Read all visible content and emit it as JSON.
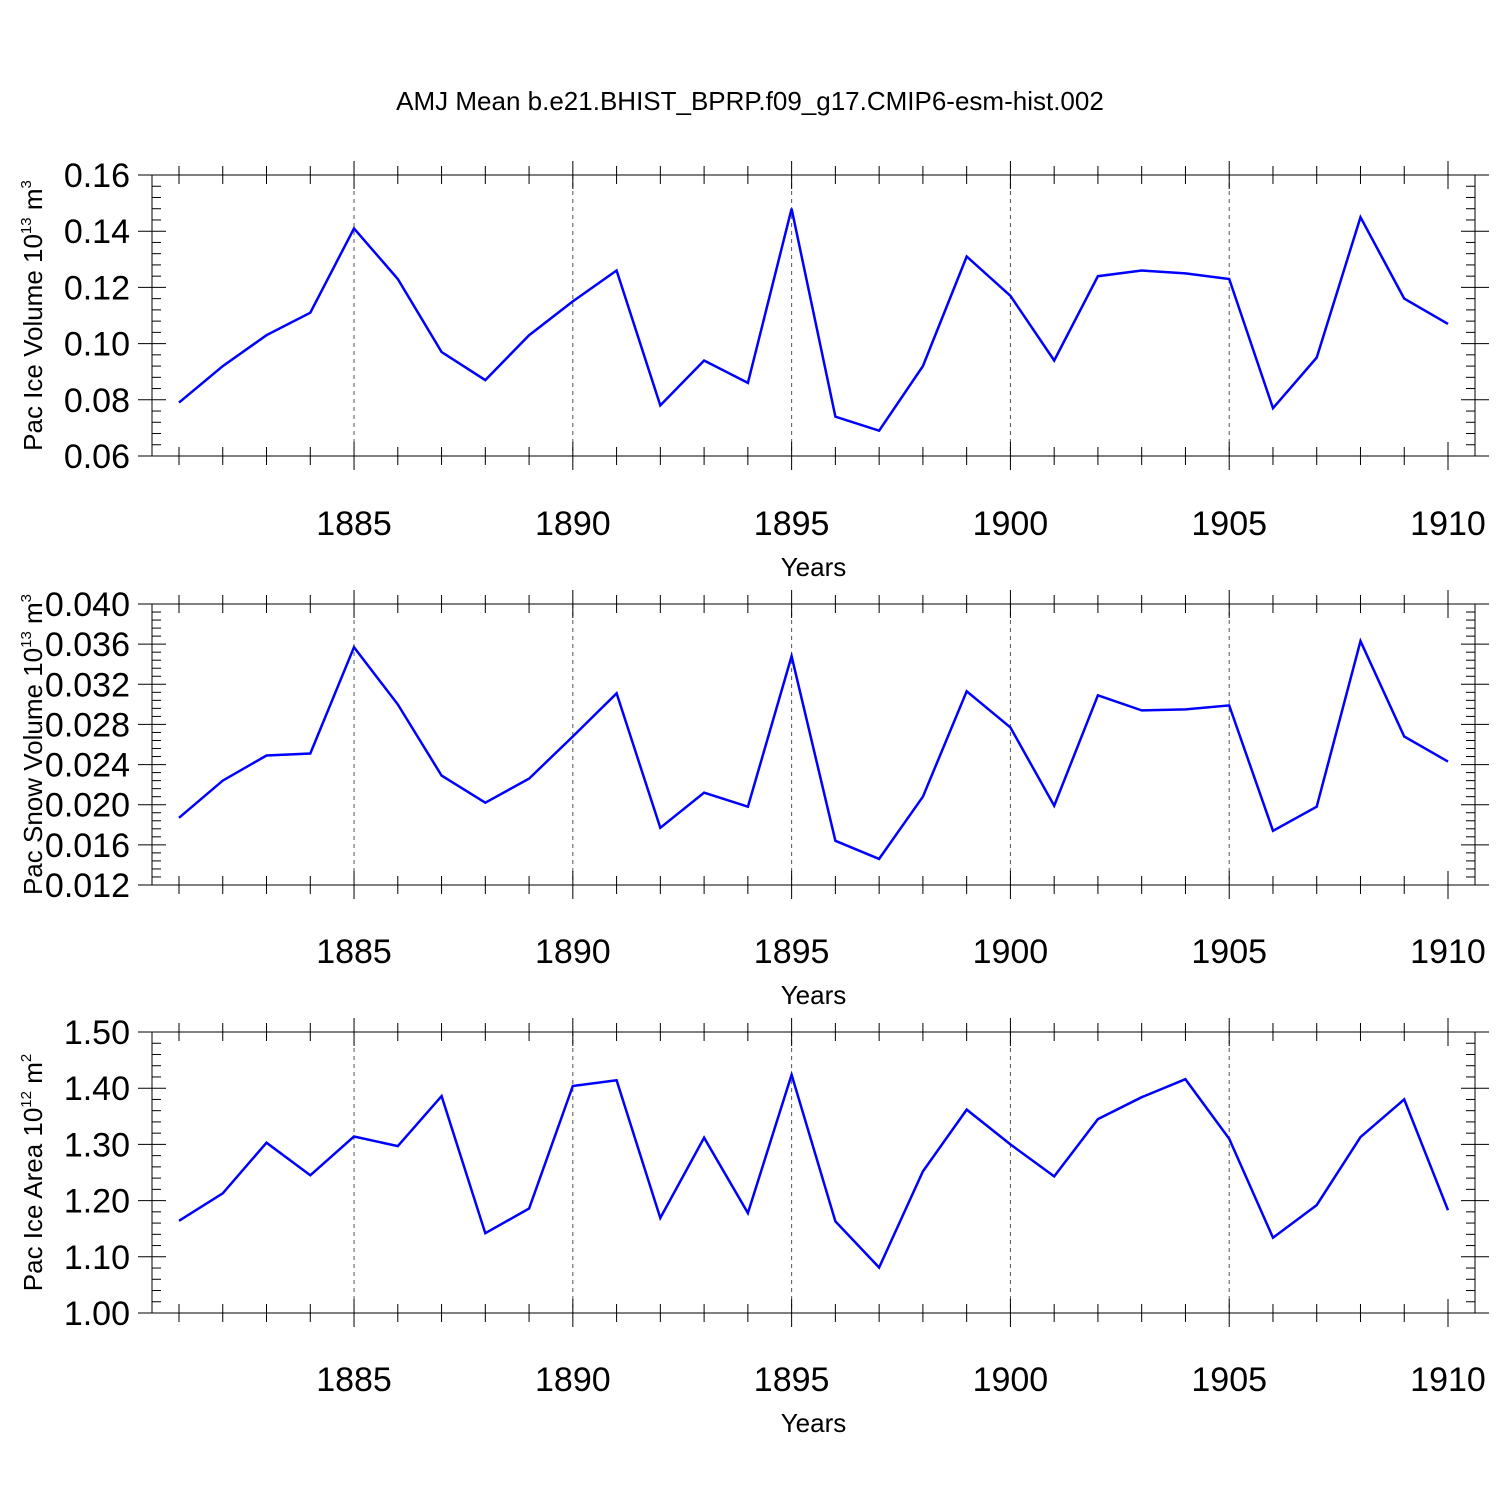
{
  "title": "AMJ Mean b.e21.BHIST_BPRP.f09_g17.CMIP6-esm-hist.002",
  "colors": {
    "line": "#0000ff",
    "axis": "#000000",
    "grid": "#555555"
  },
  "chart_data": [
    {
      "type": "line",
      "xlabel": "Years",
      "ylabel": {
        "main": "Pac Ice Volume 10",
        "exp": "13",
        "unit": " m",
        "unit_exp": "3"
      },
      "xlim": [
        1881,
        1910
      ],
      "ylim": [
        0.06,
        0.16
      ],
      "xticks": [
        1885,
        1890,
        1895,
        1900,
        1905,
        1910
      ],
      "yticks": [
        0.06,
        0.08,
        0.1,
        0.12,
        0.14,
        0.16
      ],
      "ytick_labels": [
        "0.06",
        "0.08",
        "0.10",
        "0.12",
        "0.14",
        "0.16"
      ],
      "vgrid": [
        1885,
        1890,
        1895,
        1900,
        1905
      ],
      "x": [
        1881,
        1882,
        1883,
        1884,
        1885,
        1886,
        1887,
        1888,
        1889,
        1890,
        1891,
        1892,
        1893,
        1894,
        1895,
        1896,
        1897,
        1898,
        1899,
        1900,
        1901,
        1902,
        1903,
        1904,
        1905,
        1906,
        1907,
        1908,
        1909,
        1910
      ],
      "series": [
        {
          "values": [
            0.079,
            0.092,
            0.103,
            0.111,
            0.141,
            0.123,
            0.097,
            0.087,
            0.103,
            0.115,
            0.126,
            0.078,
            0.094,
            0.086,
            0.148,
            0.074,
            0.069,
            0.092,
            0.131,
            0.117,
            0.094,
            0.124,
            0.126,
            0.125,
            0.123,
            0.077,
            0.095,
            0.145,
            0.116,
            0.107
          ]
        }
      ]
    },
    {
      "type": "line",
      "xlabel": "Years",
      "ylabel": {
        "main": "Pac Snow Volume 10",
        "exp": "13",
        "unit": " m",
        "unit_exp": "3"
      },
      "xlim": [
        1881,
        1910
      ],
      "ylim": [
        0.012,
        0.04
      ],
      "xticks": [
        1885,
        1890,
        1895,
        1900,
        1905,
        1910
      ],
      "yticks": [
        0.012,
        0.016,
        0.02,
        0.024,
        0.028,
        0.032,
        0.036,
        0.04
      ],
      "ytick_labels": [
        "0.012",
        "0.016",
        "0.020",
        "0.024",
        "0.028",
        "0.032",
        "0.036",
        "0.040"
      ],
      "vgrid": [
        1885,
        1890,
        1895,
        1900,
        1905
      ],
      "x": [
        1881,
        1882,
        1883,
        1884,
        1885,
        1886,
        1887,
        1888,
        1889,
        1890,
        1891,
        1892,
        1893,
        1894,
        1895,
        1896,
        1897,
        1898,
        1899,
        1900,
        1901,
        1902,
        1903,
        1904,
        1905,
        1906,
        1907,
        1908,
        1909,
        1910
      ],
      "series": [
        {
          "values": [
            0.0187,
            0.0224,
            0.0249,
            0.0251,
            0.0357,
            0.03,
            0.0229,
            0.0202,
            0.0226,
            0.0268,
            0.0311,
            0.0177,
            0.0212,
            0.0198,
            0.0348,
            0.0164,
            0.0146,
            0.0208,
            0.0313,
            0.0277,
            0.0199,
            0.0309,
            0.0294,
            0.0295,
            0.0299,
            0.0174,
            0.0198,
            0.0363,
            0.0268,
            0.0243
          ]
        }
      ]
    },
    {
      "type": "line",
      "xlabel": "Years",
      "ylabel": {
        "main": "Pac Ice Area 10",
        "exp": "12",
        "unit": " m",
        "unit_exp": "2"
      },
      "xlim": [
        1881,
        1910
      ],
      "ylim": [
        1.0,
        1.5
      ],
      "xticks": [
        1885,
        1890,
        1895,
        1900,
        1905,
        1910
      ],
      "yticks": [
        1.0,
        1.1,
        1.2,
        1.3,
        1.4,
        1.5
      ],
      "ytick_labels": [
        "1.00",
        "1.10",
        "1.20",
        "1.30",
        "1.40",
        "1.50"
      ],
      "vgrid": [
        1885,
        1890,
        1895,
        1900,
        1905
      ],
      "x": [
        1881,
        1882,
        1883,
        1884,
        1885,
        1886,
        1887,
        1888,
        1889,
        1890,
        1891,
        1892,
        1893,
        1894,
        1895,
        1896,
        1897,
        1898,
        1899,
        1900,
        1901,
        1902,
        1903,
        1904,
        1905,
        1906,
        1907,
        1908,
        1909,
        1910
      ],
      "series": [
        {
          "values": [
            1.164,
            1.213,
            1.303,
            1.245,
            1.314,
            1.297,
            1.386,
            1.142,
            1.186,
            1.404,
            1.414,
            1.169,
            1.312,
            1.178,
            1.424,
            1.163,
            1.081,
            1.252,
            1.362,
            1.3,
            1.243,
            1.345,
            1.384,
            1.416,
            1.31,
            1.134,
            1.192,
            1.313,
            1.38,
            1.183
          ]
        }
      ]
    }
  ]
}
